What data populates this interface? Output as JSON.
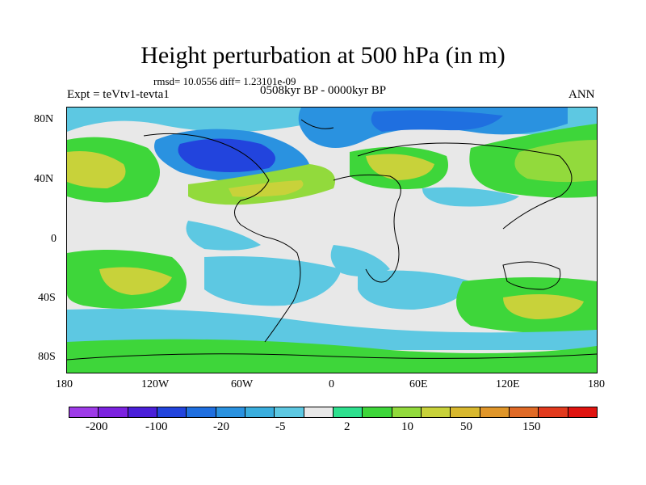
{
  "header": {
    "title": "Height perturbation at 500 hPa (in m)",
    "stats": "rmsd= 10.0556 diff= 1.23101e-09",
    "period": "0508kyr BP - 0000kyr BP",
    "experiment": "Expt = teVtv1-tevta1",
    "season": "ANN"
  },
  "map": {
    "y_axis": [
      "80N",
      "40N",
      "0",
      "40S",
      "80S"
    ],
    "x_axis": [
      "180",
      "120W",
      "60W",
      "0",
      "60E",
      "120E",
      "180"
    ],
    "lon_range": [
      -180,
      180
    ],
    "lat_range": [
      -90,
      90
    ]
  },
  "colorbar": {
    "colors": [
      "#9e3be8",
      "#7c22e0",
      "#4a1fd9",
      "#2244dd",
      "#1f6fe0",
      "#2a92e0",
      "#3aaede",
      "#5dc8e2",
      "#e8e8e8",
      "#2ee08e",
      "#3ed63a",
      "#92da3c",
      "#c8d23a",
      "#d8b82e",
      "#e0962a",
      "#e06a26",
      "#e23a1e",
      "#e01410"
    ],
    "tick_labels": [
      "-200",
      "-100",
      "-20",
      "-5",
      "2",
      "10",
      "50",
      "150"
    ]
  }
}
